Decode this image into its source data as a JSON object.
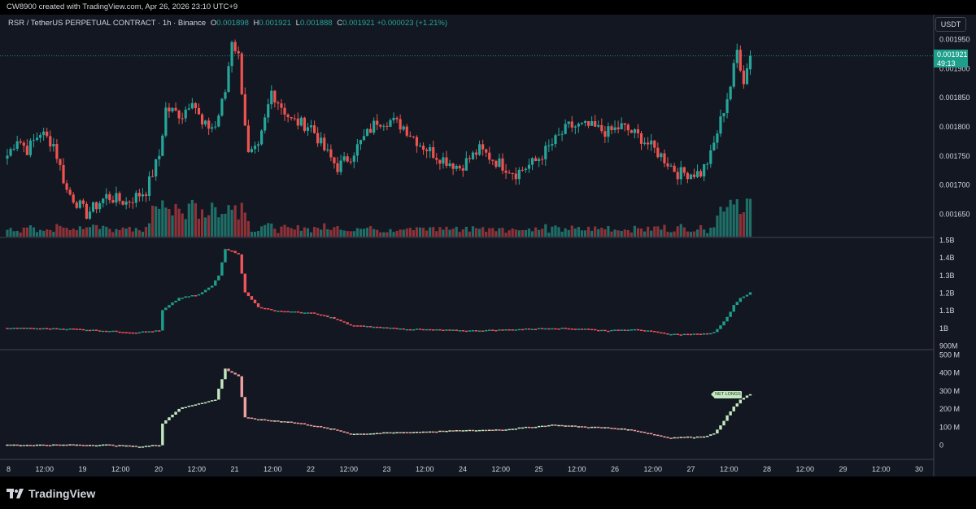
{
  "header": {
    "credit": "CW8900 created with TradingView.com, Apr 26, 2026 23:10 UTC+9"
  },
  "legend": {
    "symbol": "RSR / TetherUS PERPETUAL CONTRACT · 1h · Binance",
    "open_label": "O",
    "open": "0.001898",
    "high_label": "H",
    "high": "0.001921",
    "low_label": "L",
    "low": "0.001888",
    "close_label": "C",
    "close": "0.001921",
    "change": "+0.000023 (+1.21%)"
  },
  "currency_button": "USDT",
  "price_tag": {
    "price": "0.001921",
    "countdown": "49:13"
  },
  "net_longs_tag": "NET LONGS",
  "brand": {
    "name": "TradingView"
  },
  "colors": {
    "up": "#26a69a",
    "down": "#ef5350",
    "oi_up": "#1e9f8c",
    "oi_down": "#f0535a",
    "nl_up": "#c4e8c0",
    "nl_down": "#f0a0a0",
    "background": "#131722"
  },
  "chart_data": [
    {
      "type": "candlestick",
      "x_tick_labels": [
        "8",
        "12:00",
        "19",
        "12:00",
        "20",
        "12:00",
        "21",
        "12:00",
        "22",
        "12:00",
        "23",
        "12:00",
        "24",
        "12:00",
        "25",
        "12:00",
        "26",
        "12:00",
        "27",
        "12:00",
        "28",
        "12:00",
        "29",
        "12:00",
        "30"
      ],
      "y_tick_labels": [
        "0.001950",
        "0.001900",
        "0.001850",
        "0.001800",
        "0.001750",
        "0.001700",
        "0.001650"
      ],
      "ylim": [
        0.001615,
        0.001975
      ],
      "bar_interval": "1h",
      "first_bar": "Apr 18 09:00",
      "last_bar": "Apr 26 23:00",
      "keypoints": [
        [
          0,
          0.00175
        ],
        [
          3,
          0.00178
        ],
        [
          6,
          0.00176
        ],
        [
          10,
          0.00179
        ],
        [
          14,
          0.00177
        ],
        [
          18,
          0.00169
        ],
        [
          24,
          0.00165
        ],
        [
          30,
          0.00168
        ],
        [
          36,
          0.00167
        ],
        [
          42,
          0.00169
        ],
        [
          46,
          0.00175
        ],
        [
          48,
          0.00183
        ],
        [
          53,
          0.00182
        ],
        [
          56,
          0.00185
        ],
        [
          59,
          0.0018
        ],
        [
          63,
          0.0018
        ],
        [
          66,
          0.00186
        ],
        [
          68,
          0.00195
        ],
        [
          70,
          0.00192
        ],
        [
          73,
          0.00175
        ],
        [
          76,
          0.00176
        ],
        [
          80,
          0.00186
        ],
        [
          86,
          0.00181
        ],
        [
          92,
          0.0018
        ],
        [
          96,
          0.00176
        ],
        [
          100,
          0.00173
        ],
        [
          104,
          0.00175
        ],
        [
          108,
          0.00178
        ],
        [
          112,
          0.00181
        ],
        [
          116,
          0.00181
        ],
        [
          120,
          0.0018
        ],
        [
          125,
          0.00177
        ],
        [
          130,
          0.00175
        ],
        [
          137,
          0.00173
        ],
        [
          143,
          0.00176
        ],
        [
          148,
          0.00174
        ],
        [
          154,
          0.00172
        ],
        [
          160,
          0.00174
        ],
        [
          165,
          0.00177
        ],
        [
          170,
          0.0018
        ],
        [
          176,
          0.0018
        ],
        [
          182,
          0.00179
        ],
        [
          186,
          0.0018
        ],
        [
          192,
          0.00178
        ],
        [
          198,
          0.00175
        ],
        [
          203,
          0.00172
        ],
        [
          210,
          0.00172
        ],
        [
          213,
          0.00175
        ],
        [
          216,
          0.00181
        ],
        [
          219,
          0.00187
        ],
        [
          221,
          0.00193
        ],
        [
          223,
          0.00188
        ],
        [
          225,
          0.00192
        ]
      ],
      "volume_label": "Volume"
    },
    {
      "type": "step",
      "series": [
        {
          "name": "open interest"
        }
      ],
      "y_tick_labels": [
        "1.5B",
        "1.4B",
        "1.3B",
        "1.2B",
        "1.1B",
        "1B",
        "900M"
      ],
      "ylim": [
        0.9,
        1.5
      ],
      "y_unit": "B",
      "keypoints": [
        [
          0,
          1.0
        ],
        [
          20,
          0.995
        ],
        [
          38,
          0.975
        ],
        [
          46,
          0.985
        ],
        [
          47,
          1.1
        ],
        [
          52,
          1.17
        ],
        [
          58,
          1.19
        ],
        [
          62,
          1.24
        ],
        [
          64,
          1.3
        ],
        [
          66,
          1.45
        ],
        [
          70,
          1.42
        ],
        [
          72,
          1.2
        ],
        [
          76,
          1.12
        ],
        [
          80,
          1.1
        ],
        [
          92,
          1.085
        ],
        [
          98,
          1.06
        ],
        [
          104,
          1.015
        ],
        [
          120,
          0.995
        ],
        [
          140,
          0.985
        ],
        [
          150,
          0.99
        ],
        [
          165,
          1.0
        ],
        [
          175,
          0.995
        ],
        [
          182,
          0.985
        ],
        [
          190,
          0.995
        ],
        [
          200,
          0.965
        ],
        [
          210,
          0.965
        ],
        [
          214,
          0.975
        ],
        [
          218,
          1.06
        ],
        [
          220,
          1.13
        ],
        [
          222,
          1.17
        ],
        [
          225,
          1.2
        ]
      ]
    },
    {
      "type": "step",
      "series": [
        {
          "name": "NET LONGS"
        }
      ],
      "y_tick_labels": [
        "500 M",
        "400 M",
        "300 M",
        "200 M",
        "100 M",
        "0"
      ],
      "ylim": [
        -20,
        500
      ],
      "y_unit": "M",
      "keypoints": [
        [
          0,
          0
        ],
        [
          30,
          0
        ],
        [
          40,
          -10
        ],
        [
          46,
          0
        ],
        [
          47,
          120
        ],
        [
          52,
          200
        ],
        [
          58,
          230
        ],
        [
          63,
          250
        ],
        [
          64,
          310
        ],
        [
          66,
          420
        ],
        [
          70,
          380
        ],
        [
          72,
          150
        ],
        [
          76,
          140
        ],
        [
          84,
          130
        ],
        [
          90,
          115
        ],
        [
          100,
          80
        ],
        [
          104,
          60
        ],
        [
          120,
          70
        ],
        [
          140,
          80
        ],
        [
          150,
          85
        ],
        [
          165,
          110
        ],
        [
          175,
          100
        ],
        [
          182,
          95
        ],
        [
          190,
          80
        ],
        [
          200,
          40
        ],
        [
          210,
          45
        ],
        [
          214,
          60
        ],
        [
          218,
          160
        ],
        [
          220,
          210
        ],
        [
          222,
          250
        ],
        [
          225,
          280
        ]
      ]
    }
  ]
}
